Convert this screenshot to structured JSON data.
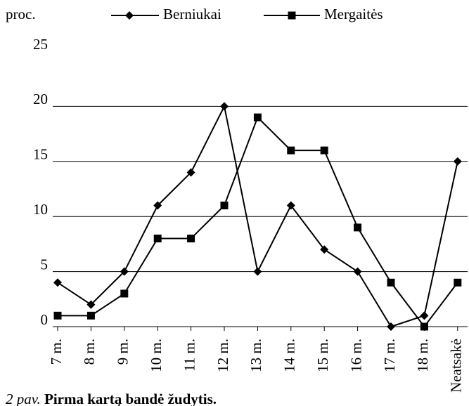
{
  "chart_data": {
    "type": "line",
    "y_label": "proc.",
    "caption_label": "2 pav.",
    "caption": "Pirma kartą bandė žudytis.",
    "categories": [
      "7 m.",
      "8 m.",
      "9 m.",
      "10 m.",
      "11 m.",
      "12 m.",
      "13 m.",
      "14 m.",
      "15 m.",
      "16 m.",
      "17 m.",
      "18 m.",
      "Neatsakė"
    ],
    "series": [
      {
        "name": "Berniukai",
        "color": "#000000",
        "marker": "diamond",
        "values": [
          4,
          2,
          5,
          11,
          14,
          20,
          5,
          11,
          7,
          5,
          0,
          1,
          15
        ]
      },
      {
        "name": "Mergaitės",
        "color": "#000000",
        "marker": "square",
        "values": [
          1,
          1,
          3,
          8,
          8,
          11,
          19,
          16,
          16,
          9,
          4,
          0,
          4
        ]
      }
    ],
    "ylim": [
      0,
      25
    ],
    "yticks": [
      0,
      5,
      10,
      15,
      20,
      25
    ],
    "grid": true
  }
}
